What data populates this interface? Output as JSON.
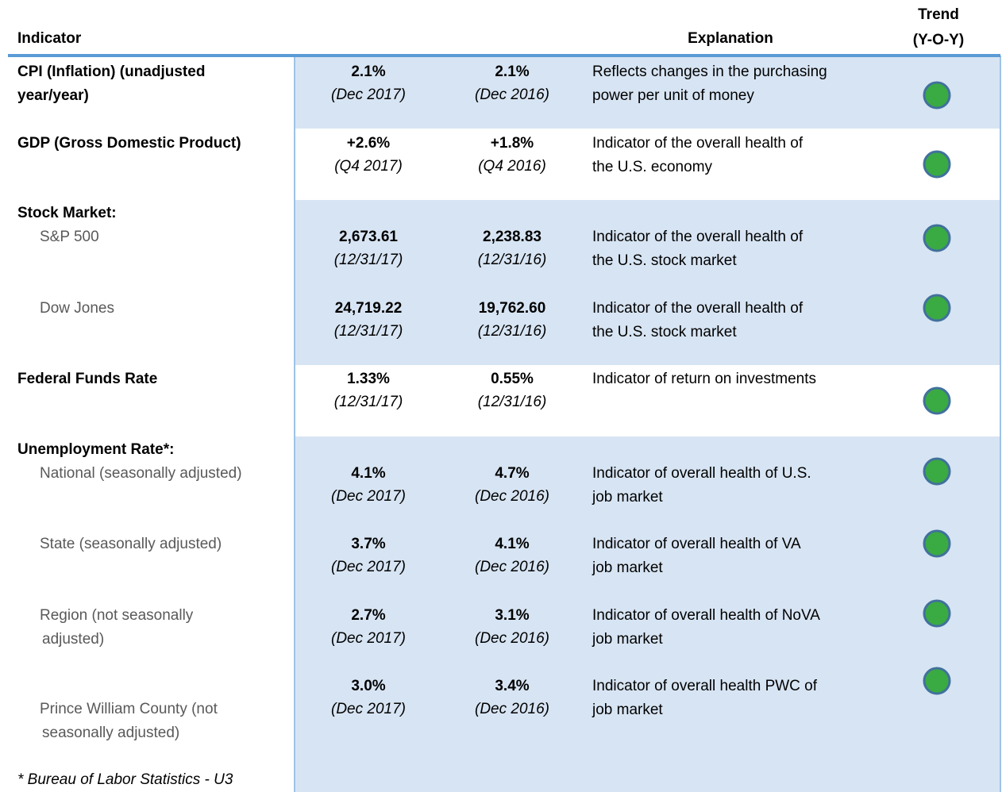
{
  "header": {
    "indicator": "Indicator",
    "explanation": "Explanation",
    "trend": [
      "Trend",
      "(Y-O-Y)"
    ]
  },
  "rows": [
    {
      "heading": [
        "CPI (Inflation) (unadjusted",
        "year/year)"
      ],
      "current": "2.1%",
      "current_date": "(Dec 2017)",
      "prior": "2.1%",
      "prior_date": "(Dec 2016)",
      "explanation": [
        "Reflects changes in the purchasing",
        "power per unit of money"
      ]
    },
    {
      "heading": [
        "GDP (Gross Domestic Product)"
      ],
      "current": "+2.6%",
      "current_date": "(Q4 2017)",
      "prior": "+1.8%",
      "prior_date": "(Q4 2016)",
      "explanation": [
        "Indicator of the overall health of",
        "the U.S. economy"
      ]
    },
    {
      "heading": [
        "Stock Market:"
      ],
      "sub": [
        "S&P 500"
      ],
      "current": "2,673.61",
      "current_date": "(12/31/17)",
      "prior": "2,238.83",
      "prior_date": "(12/31/16)",
      "explanation": [
        "Indicator of the overall health of",
        "the U.S. stock market"
      ]
    },
    {
      "sub": [
        "Dow Jones"
      ],
      "current": "24,719.22",
      "current_date": "(12/31/17)",
      "prior": "19,762.60",
      "prior_date": "(12/31/16)",
      "explanation": [
        "Indicator of the overall health of",
        "the U.S. stock market"
      ]
    },
    {
      "heading": [
        "Federal Funds Rate"
      ],
      "current": "1.33%",
      "current_date": "(12/31/17)",
      "prior": "0.55%",
      "prior_date": "(12/31/16)",
      "explanation": [
        "Indicator of return on investments"
      ]
    },
    {
      "heading": [
        "Unemployment Rate*:"
      ],
      "sub": [
        "National (seasonally adjusted)"
      ],
      "current": "4.1%",
      "current_date": "(Dec 2017)",
      "prior": "4.7%",
      "prior_date": "(Dec 2016)",
      "explanation": [
        "Indicator of overall health of U.S.",
        "job market"
      ]
    },
    {
      "sub": [
        "State (seasonally adjusted)"
      ],
      "current": "3.7%",
      "current_date": "(Dec 2017)",
      "prior": "4.1%",
      "prior_date": "(Dec 2016)",
      "explanation": [
        "Indicator of overall health of VA",
        "job market"
      ]
    },
    {
      "sub": [
        "Region (not seasonally",
        "adjusted)"
      ],
      "current": "2.7%",
      "current_date": "(Dec 2017)",
      "prior": "3.1%",
      "prior_date": "(Dec 2016)",
      "explanation": [
        "Indicator of overall health of NoVA",
        "job market"
      ]
    },
    {
      "sub": [
        "Prince William County (not",
        "seasonally adjusted)"
      ],
      "current": "3.0%",
      "current_date": "(Dec 2017)",
      "prior": "3.4%",
      "prior_date": "(Dec 2016)",
      "explanation": [
        "Indicator of overall health PWC of",
        "job market"
      ]
    }
  ],
  "footnote": "* Bureau of Labor Statistics - U3"
}
